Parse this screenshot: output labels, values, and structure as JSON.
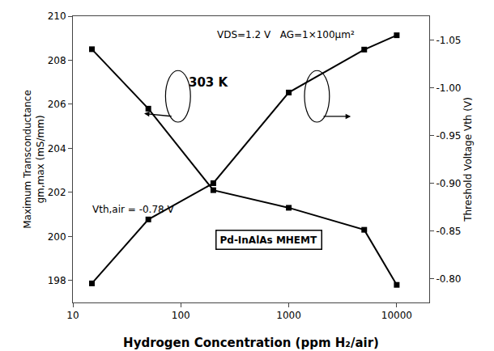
{
  "chart_data": {
    "type": "line",
    "x_label": "Hydrogen Concentration (ppm H₂/air)",
    "y_label": "Maximum Transconductance\ngm,max (mS/mm)",
    "y2_label": "Threshold Voltage Vth (V)",
    "x": [
      15,
      50,
      200,
      1000,
      5000,
      10000
    ],
    "series": [
      {
        "color": "#000000",
        "marker": "square",
        "line_style": "solid",
        "values": [
          208.5,
          205.8,
          202.1,
          201.3,
          200.3,
          197.8
        ]
      },
      {
        "color": "#000000",
        "marker": "square",
        "line_style": "solid",
        "axis": "y2",
        "values": [
          -0.795,
          -0.862,
          -0.9,
          -0.995,
          -1.04,
          -1.055
        ]
      }
    ],
    "log": "x",
    "xlim": [
      10,
      20000
    ],
    "xticks": [
      10,
      100,
      1000,
      10000
    ],
    "ylim": [
      197,
      210
    ],
    "yticks": [
      198,
      200,
      202,
      204,
      206,
      208,
      210
    ],
    "y2lim": [
      -0.775,
      -1.075
    ],
    "y2ticks": [
      {
        "value": -0.8,
        "label": "-0.80"
      },
      -0.85,
      {
        "value": -0.9,
        "label": "-0.90"
      },
      -0.95,
      {
        "value": -1.0,
        "label": "-1.00"
      },
      -1.05
    ],
    "grid": false,
    "annotations": [
      "VDS=1.2 V   AG=1×100μm²",
      "303 K",
      "Vth,air = -0.78 V",
      "Pd-InAlAs MHEMT"
    ]
  }
}
